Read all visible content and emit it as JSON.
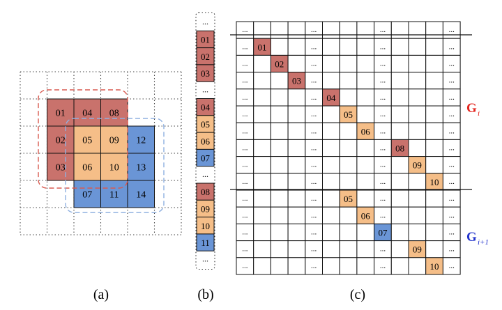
{
  "colors": {
    "red": "#c9726c",
    "orange": "#f5be88",
    "blue": "#6a95d6",
    "red_dash": "#d85a50",
    "blue_dash": "#8fb0e0",
    "label_red": "#e3261f",
    "label_blue": "#2233cc"
  },
  "ellipsis": "...",
  "panel_a": {
    "caption": "(a)",
    "cells": [
      {
        "row": 0,
        "col": 0,
        "label": "01",
        "color": "red"
      },
      {
        "row": 0,
        "col": 1,
        "label": "04",
        "color": "red"
      },
      {
        "row": 0,
        "col": 2,
        "label": "08",
        "color": "red"
      },
      {
        "row": 1,
        "col": 0,
        "label": "02",
        "color": "red"
      },
      {
        "row": 1,
        "col": 1,
        "label": "05",
        "color": "orange"
      },
      {
        "row": 1,
        "col": 2,
        "label": "09",
        "color": "orange"
      },
      {
        "row": 1,
        "col": 3,
        "label": "12",
        "color": "blue"
      },
      {
        "row": 2,
        "col": 0,
        "label": "03",
        "color": "red"
      },
      {
        "row": 2,
        "col": 1,
        "label": "06",
        "color": "orange"
      },
      {
        "row": 2,
        "col": 2,
        "label": "10",
        "color": "orange"
      },
      {
        "row": 2,
        "col": 3,
        "label": "13",
        "color": "blue"
      },
      {
        "row": 3,
        "col": 1,
        "label": "07",
        "color": "blue"
      },
      {
        "row": 3,
        "col": 2,
        "label": "11",
        "color": "blue"
      },
      {
        "row": 3,
        "col": 3,
        "label": "14",
        "color": "blue"
      }
    ]
  },
  "panel_b": {
    "caption": "(b)",
    "items": [
      {
        "label": "...",
        "color": ""
      },
      {
        "label": "01",
        "color": "red"
      },
      {
        "label": "02",
        "color": "red"
      },
      {
        "label": "03",
        "color": "red"
      },
      {
        "label": "...",
        "color": ""
      },
      {
        "label": "04",
        "color": "red"
      },
      {
        "label": "05",
        "color": "orange"
      },
      {
        "label": "06",
        "color": "orange"
      },
      {
        "label": "07",
        "color": "blue"
      },
      {
        "label": "...",
        "color": ""
      },
      {
        "label": "08",
        "color": "red"
      },
      {
        "label": "09",
        "color": "orange"
      },
      {
        "label": "10",
        "color": "orange"
      },
      {
        "label": "11",
        "color": "blue"
      },
      {
        "label": "...",
        "color": ""
      }
    ]
  },
  "panel_c": {
    "caption": "(c)",
    "group_labels": [
      {
        "main": "G",
        "sub": "i",
        "color": "label_red"
      },
      {
        "main": "G",
        "sub": "i+1",
        "color": "label_blue"
      }
    ],
    "dot_columns": [
      0,
      4,
      8,
      12
    ],
    "rows": [
      {
        "col": -1,
        "label": "",
        "color": ""
      },
      {
        "col": 1,
        "label": "01",
        "color": "red"
      },
      {
        "col": 2,
        "label": "02",
        "color": "red"
      },
      {
        "col": 3,
        "label": "03",
        "color": "red"
      },
      {
        "col": 5,
        "label": "04",
        "color": "red"
      },
      {
        "col": 6,
        "label": "05",
        "color": "orange"
      },
      {
        "col": 7,
        "label": "06",
        "color": "orange"
      },
      {
        "col": 9,
        "label": "08",
        "color": "red"
      },
      {
        "col": 10,
        "label": "09",
        "color": "orange"
      },
      {
        "col": 11,
        "label": "10",
        "color": "orange"
      },
      {
        "col": 6,
        "label": "05",
        "color": "orange"
      },
      {
        "col": 7,
        "label": "06",
        "color": "orange"
      },
      {
        "col": 8,
        "label": "07",
        "color": "blue"
      },
      {
        "col": 10,
        "label": "09",
        "color": "orange"
      },
      {
        "col": 11,
        "label": "10",
        "color": "orange"
      }
    ]
  }
}
